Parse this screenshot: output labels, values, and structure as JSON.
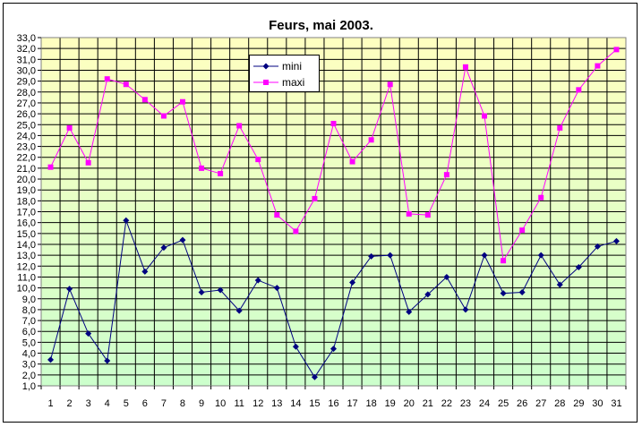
{
  "chart_data": {
    "type": "line",
    "title": "Feurs, mai 2003.",
    "xlabel": "",
    "ylabel": "",
    "x": [
      1,
      2,
      3,
      4,
      5,
      6,
      7,
      8,
      9,
      10,
      11,
      12,
      13,
      14,
      15,
      16,
      17,
      18,
      19,
      20,
      21,
      22,
      23,
      24,
      25,
      26,
      27,
      28,
      29,
      30,
      31
    ],
    "ylim": [
      1.0,
      33.0
    ],
    "ytick_step": 1.0,
    "grid": true,
    "legend_position": "top-center",
    "series": [
      {
        "name": "mini",
        "color": "#000080",
        "marker": "diamond",
        "values": [
          3.4,
          9.9,
          5.8,
          3.3,
          16.2,
          11.5,
          13.7,
          14.4,
          9.6,
          9.8,
          7.9,
          10.7,
          10.0,
          4.6,
          1.8,
          4.4,
          10.5,
          12.9,
          13.0,
          7.8,
          9.4,
          11.0,
          8.0,
          13.0,
          9.5,
          9.6,
          13.0,
          10.3,
          11.9,
          13.8,
          14.3
        ]
      },
      {
        "name": "maxi",
        "color": "#ff00ff",
        "marker": "square",
        "values": [
          21.1,
          24.7,
          21.5,
          29.2,
          28.7,
          27.3,
          25.8,
          27.1,
          21.0,
          20.5,
          24.9,
          21.8,
          16.7,
          15.2,
          18.2,
          25.1,
          21.6,
          23.6,
          28.7,
          16.8,
          16.7,
          20.4,
          30.3,
          25.8,
          12.5,
          15.3,
          18.3,
          24.7,
          28.2,
          30.4,
          31.9
        ]
      }
    ]
  }
}
